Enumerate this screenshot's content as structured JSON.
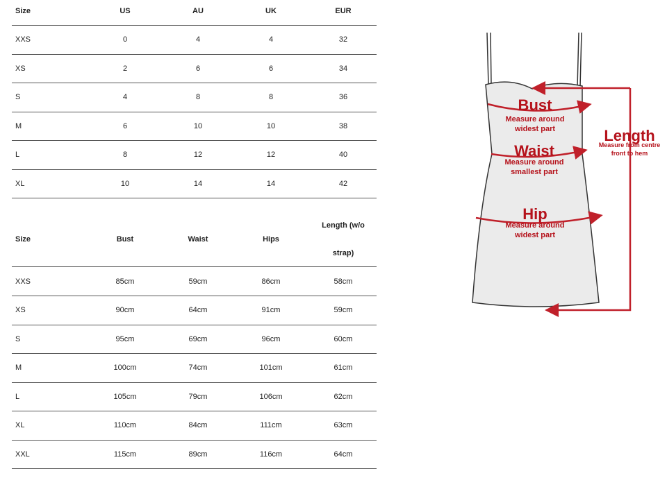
{
  "size_table": {
    "headers": [
      "Size",
      "US",
      "AU",
      "UK",
      "EUR"
    ],
    "rows": [
      [
        "XXS",
        "0",
        "4",
        "4",
        "32"
      ],
      [
        "XS",
        "2",
        "6",
        "6",
        "34"
      ],
      [
        "S",
        "4",
        "8",
        "8",
        "36"
      ],
      [
        "M",
        "6",
        "10",
        "10",
        "38"
      ],
      [
        "L",
        "8",
        "12",
        "12",
        "40"
      ],
      [
        "XL",
        "10",
        "14",
        "14",
        "42"
      ]
    ]
  },
  "measurement_table": {
    "headers": [
      "Size",
      "Bust",
      "Waist",
      "Hips",
      "Length (w/o strap)"
    ],
    "rows": [
      [
        "XXS",
        "85cm",
        "59cm",
        "86cm",
        "58cm"
      ],
      [
        "XS",
        "90cm",
        "64cm",
        "91cm",
        "59cm"
      ],
      [
        "S",
        "95cm",
        "69cm",
        "96cm",
        "60cm"
      ],
      [
        "M",
        "100cm",
        "74cm",
        "101cm",
        "61cm"
      ],
      [
        "L",
        "105cm",
        "79cm",
        "106cm",
        "62cm"
      ],
      [
        "XL",
        "110cm",
        "84cm",
        "111cm",
        "63cm"
      ],
      [
        "XXL",
        "115cm",
        "89cm",
        "116cm",
        "64cm"
      ]
    ]
  },
  "diagram": {
    "bust": {
      "label": "Bust",
      "note": "Measure around widest part"
    },
    "waist": {
      "label": "Waist",
      "note": "Measure around smallest part"
    },
    "hip": {
      "label": "Hip",
      "note": "Measure around widest part"
    },
    "length": {
      "label": "Length",
      "note": "Measure from centre front to hem"
    }
  }
}
